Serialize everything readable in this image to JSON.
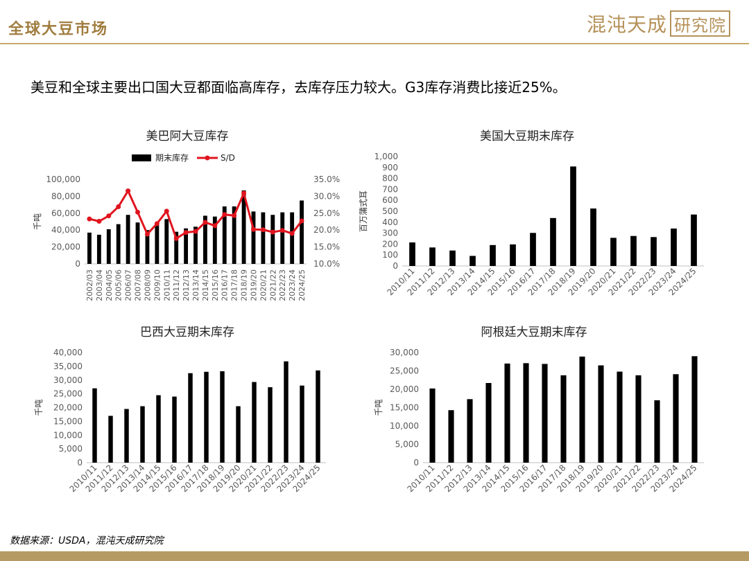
{
  "header": {
    "title": "全球大豆市场",
    "logo_text": "混沌天成",
    "logo_box": "研究院"
  },
  "subtitle": "美豆和全球主要出口国大豆都面临高库存，去库存压力较大。G3库存消费比接近25%。",
  "source": "数据来源：USDA，混沌天成研究院",
  "colors": {
    "bar": "#000000",
    "line": "#e0141e",
    "gold": "#b5925a",
    "axis": "#bfbfbf"
  },
  "chart_data": [
    {
      "type": "bar+line",
      "title": "美巴阿大豆库存",
      "ylabel": "千吨",
      "categories": [
        "2002/03",
        "2003/04",
        "2004/05",
        "2005/06",
        "2006/07",
        "2007/08",
        "2008/09",
        "2009/10",
        "2010/11",
        "2011/12",
        "2012/13",
        "2013/14",
        "2014/15",
        "2015/16",
        "2016/17",
        "2017/18",
        "2018/19",
        "2019/20",
        "2020/21",
        "2021/22",
        "2022/23",
        "2023/24",
        "2024/25"
      ],
      "series": [
        {
          "name": "期末库存",
          "type": "bar",
          "axis": "left",
          "values": [
            37000,
            34500,
            41000,
            47000,
            58000,
            49000,
            40000,
            48000,
            53000,
            38000,
            42000,
            44000,
            57000,
            56000,
            68000,
            68000,
            87000,
            62000,
            61000,
            58000,
            61000,
            61000,
            75000
          ]
        },
        {
          "name": "S/D",
          "type": "line",
          "axis": "right",
          "values": [
            23.3,
            22.6,
            24.2,
            26.9,
            31.6,
            25.3,
            18.8,
            21.9,
            25.6,
            17.5,
            19.3,
            19.6,
            22.3,
            21.3,
            24.6,
            24.3,
            30.9,
            20.2,
            20.1,
            19.4,
            19.9,
            19.0,
            22.7
          ]
        }
      ],
      "ylim": [
        0,
        100000
      ],
      "yticks": [
        "0",
        "20,000",
        "40,000",
        "60,000",
        "80,000",
        "100,000"
      ],
      "y2lim": [
        10,
        35
      ],
      "y2ticks": [
        "10.0%",
        "15.0%",
        "20.0%",
        "25.0%",
        "30.0%",
        "35.0%"
      ],
      "legend": "top"
    },
    {
      "type": "bar",
      "title": "美国大豆期末库存",
      "ylabel": "百万蒲式耳",
      "categories": [
        "2010/11",
        "2011/12",
        "2012/13",
        "2013/14",
        "2014/15",
        "2015/16",
        "2016/17",
        "2017/18",
        "2018/19",
        "2019/20",
        "2020/21",
        "2021/22",
        "2022/23",
        "2023/24",
        "2024/25"
      ],
      "values": [
        215,
        169,
        141,
        92,
        191,
        197,
        302,
        438,
        909,
        525,
        257,
        274,
        264,
        342,
        470
      ],
      "ylim": [
        0,
        1000
      ],
      "yticks": [
        "0",
        "100",
        "200",
        "300",
        "400",
        "500",
        "600",
        "700",
        "800",
        "900",
        "1,000"
      ]
    },
    {
      "type": "bar",
      "title": "巴西大豆期末库存",
      "ylabel": "千吨",
      "categories": [
        "2010/11",
        "2011/12",
        "2012/13",
        "2013/14",
        "2014/15",
        "2015/16",
        "2016/17",
        "2017/18",
        "2018/19",
        "2019/20",
        "2020/21",
        "2021/22",
        "2022/23",
        "2023/24",
        "2024/25"
      ],
      "values": [
        27000,
        17000,
        19500,
        20500,
        24500,
        24000,
        32500,
        33000,
        33200,
        20500,
        29300,
        27400,
        36800,
        28000,
        33500
      ],
      "ylim": [
        0,
        40000
      ],
      "yticks": [
        "0",
        "5,000",
        "10,000",
        "15,000",
        "20,000",
        "25,000",
        "30,000",
        "35,000",
        "40,000"
      ]
    },
    {
      "type": "bar",
      "title": "阿根廷大豆期末库存",
      "ylabel": "千吨",
      "categories": [
        "2010/11",
        "2011/12",
        "2012/13",
        "2013/14",
        "2014/15",
        "2015/16",
        "2016/17",
        "2017/18",
        "2018/19",
        "2019/20",
        "2020/21",
        "2021/22",
        "2022/23",
        "2023/24",
        "2024/25"
      ],
      "values": [
        20200,
        14300,
        17300,
        21700,
        27000,
        27100,
        26900,
        23800,
        28900,
        26500,
        24800,
        23800,
        17000,
        24100,
        29000
      ],
      "ylim": [
        0,
        30000
      ],
      "yticks": [
        "0",
        "5,000",
        "10,000",
        "15,000",
        "20,000",
        "25,000",
        "30,000"
      ]
    }
  ]
}
